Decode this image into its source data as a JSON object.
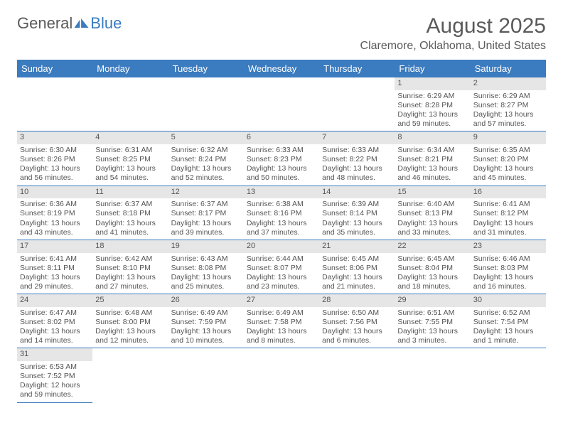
{
  "logo": {
    "text_a": "General",
    "text_b": "Blue"
  },
  "title": "August 2025",
  "location": "Claremore, Oklahoma, United States",
  "colors": {
    "header_bg": "#3b7bbf",
    "header_text": "#ffffff",
    "daynum_bg": "#e6e6e6",
    "text": "#555555",
    "rule": "#3b7bbf"
  },
  "weekdays": [
    "Sunday",
    "Monday",
    "Tuesday",
    "Wednesday",
    "Thursday",
    "Friday",
    "Saturday"
  ],
  "first_weekday_index": 5,
  "days": [
    {
      "n": 1,
      "sunrise": "6:29 AM",
      "sunset": "8:28 PM",
      "dl": "13 hours and 59 minutes."
    },
    {
      "n": 2,
      "sunrise": "6:29 AM",
      "sunset": "8:27 PM",
      "dl": "13 hours and 57 minutes."
    },
    {
      "n": 3,
      "sunrise": "6:30 AM",
      "sunset": "8:26 PM",
      "dl": "13 hours and 56 minutes."
    },
    {
      "n": 4,
      "sunrise": "6:31 AM",
      "sunset": "8:25 PM",
      "dl": "13 hours and 54 minutes."
    },
    {
      "n": 5,
      "sunrise": "6:32 AM",
      "sunset": "8:24 PM",
      "dl": "13 hours and 52 minutes."
    },
    {
      "n": 6,
      "sunrise": "6:33 AM",
      "sunset": "8:23 PM",
      "dl": "13 hours and 50 minutes."
    },
    {
      "n": 7,
      "sunrise": "6:33 AM",
      "sunset": "8:22 PM",
      "dl": "13 hours and 48 minutes."
    },
    {
      "n": 8,
      "sunrise": "6:34 AM",
      "sunset": "8:21 PM",
      "dl": "13 hours and 46 minutes."
    },
    {
      "n": 9,
      "sunrise": "6:35 AM",
      "sunset": "8:20 PM",
      "dl": "13 hours and 45 minutes."
    },
    {
      "n": 10,
      "sunrise": "6:36 AM",
      "sunset": "8:19 PM",
      "dl": "13 hours and 43 minutes."
    },
    {
      "n": 11,
      "sunrise": "6:37 AM",
      "sunset": "8:18 PM",
      "dl": "13 hours and 41 minutes."
    },
    {
      "n": 12,
      "sunrise": "6:37 AM",
      "sunset": "8:17 PM",
      "dl": "13 hours and 39 minutes."
    },
    {
      "n": 13,
      "sunrise": "6:38 AM",
      "sunset": "8:16 PM",
      "dl": "13 hours and 37 minutes."
    },
    {
      "n": 14,
      "sunrise": "6:39 AM",
      "sunset": "8:14 PM",
      "dl": "13 hours and 35 minutes."
    },
    {
      "n": 15,
      "sunrise": "6:40 AM",
      "sunset": "8:13 PM",
      "dl": "13 hours and 33 minutes."
    },
    {
      "n": 16,
      "sunrise": "6:41 AM",
      "sunset": "8:12 PM",
      "dl": "13 hours and 31 minutes."
    },
    {
      "n": 17,
      "sunrise": "6:41 AM",
      "sunset": "8:11 PM",
      "dl": "13 hours and 29 minutes."
    },
    {
      "n": 18,
      "sunrise": "6:42 AM",
      "sunset": "8:10 PM",
      "dl": "13 hours and 27 minutes."
    },
    {
      "n": 19,
      "sunrise": "6:43 AM",
      "sunset": "8:08 PM",
      "dl": "13 hours and 25 minutes."
    },
    {
      "n": 20,
      "sunrise": "6:44 AM",
      "sunset": "8:07 PM",
      "dl": "13 hours and 23 minutes."
    },
    {
      "n": 21,
      "sunrise": "6:45 AM",
      "sunset": "8:06 PM",
      "dl": "13 hours and 21 minutes."
    },
    {
      "n": 22,
      "sunrise": "6:45 AM",
      "sunset": "8:04 PM",
      "dl": "13 hours and 18 minutes."
    },
    {
      "n": 23,
      "sunrise": "6:46 AM",
      "sunset": "8:03 PM",
      "dl": "13 hours and 16 minutes."
    },
    {
      "n": 24,
      "sunrise": "6:47 AM",
      "sunset": "8:02 PM",
      "dl": "13 hours and 14 minutes."
    },
    {
      "n": 25,
      "sunrise": "6:48 AM",
      "sunset": "8:00 PM",
      "dl": "13 hours and 12 minutes."
    },
    {
      "n": 26,
      "sunrise": "6:49 AM",
      "sunset": "7:59 PM",
      "dl": "13 hours and 10 minutes."
    },
    {
      "n": 27,
      "sunrise": "6:49 AM",
      "sunset": "7:58 PM",
      "dl": "13 hours and 8 minutes."
    },
    {
      "n": 28,
      "sunrise": "6:50 AM",
      "sunset": "7:56 PM",
      "dl": "13 hours and 6 minutes."
    },
    {
      "n": 29,
      "sunrise": "6:51 AM",
      "sunset": "7:55 PM",
      "dl": "13 hours and 3 minutes."
    },
    {
      "n": 30,
      "sunrise": "6:52 AM",
      "sunset": "7:54 PM",
      "dl": "13 hours and 1 minute."
    },
    {
      "n": 31,
      "sunrise": "6:53 AM",
      "sunset": "7:52 PM",
      "dl": "12 hours and 59 minutes."
    }
  ],
  "labels": {
    "sunrise": "Sunrise:",
    "sunset": "Sunset:",
    "daylight": "Daylight:"
  }
}
